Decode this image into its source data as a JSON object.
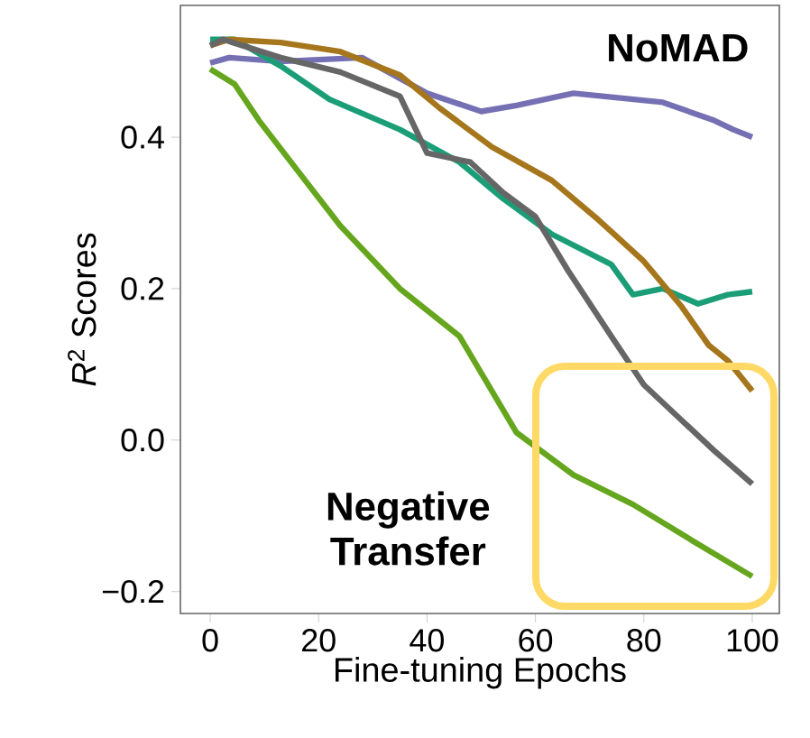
{
  "chart_data": {
    "type": "line",
    "xlabel": "Fine-tuning Epochs",
    "ylabel": "*R*$^{2}$ Scores",
    "xlim": [
      -5.5,
      105
    ],
    "ylim": [
      -0.229,
      0.574
    ],
    "xticks": [
      0,
      20,
      40,
      60,
      80,
      100
    ],
    "yticks": [
      {
        "value": -0.2,
        "label": "−0.2"
      },
      {
        "value": 0,
        "label": "0.0"
      },
      0.2,
      0.4
    ],
    "annotations": [
      "NoMAD",
      "Negative Transfer"
    ],
    "series": [
      {
        "color": "#7570b3",
        "x": [
          0,
          3.5,
          13,
          28,
          40,
          50,
          56.5,
          67,
          83.5,
          93,
          96.5,
          100
        ],
        "values": [
          0.498,
          0.505,
          0.5,
          0.505,
          0.458,
          0.434,
          0.442,
          0.458,
          0.446,
          0.422,
          0.41,
          0.4
        ]
      },
      {
        "color": "#1b9e77",
        "x": [
          0,
          4.5,
          13,
          22,
          35,
          46,
          54,
          63,
          74,
          78,
          83.5,
          90,
          95.5,
          100
        ],
        "values": [
          0.529,
          0.529,
          0.494,
          0.45,
          0.41,
          0.367,
          0.319,
          0.272,
          0.232,
          0.192,
          0.2,
          0.18,
          0.192,
          0.196
        ]
      },
      {
        "color": "#a6761d",
        "x": [
          0,
          3.5,
          13,
          24,
          35,
          42.4,
          52,
          63,
          71.6,
          80,
          87,
          92,
          95.5,
          100
        ],
        "values": [
          0.521,
          0.529,
          0.525,
          0.513,
          0.482,
          0.438,
          0.387,
          0.343,
          0.291,
          0.236,
          0.176,
          0.125,
          0.105,
          0.065
        ]
      },
      {
        "color": "#666666",
        "x": [
          0,
          2.4,
          13,
          24,
          35,
          40,
          48,
          54,
          60,
          66,
          74,
          80,
          87,
          93,
          100
        ],
        "values": [
          0.521,
          0.529,
          0.505,
          0.486,
          0.454,
          0.379,
          0.367,
          0.327,
          0.295,
          0.224,
          0.137,
          0.073,
          0.026,
          -0.014,
          -0.058
        ]
      },
      {
        "color": "#66a61e",
        "x": [
          0,
          4.5,
          9,
          17.5,
          24,
          35,
          46,
          56.5,
          67,
          78,
          89,
          100
        ],
        "values": [
          0.49,
          0.47,
          0.422,
          0.343,
          0.283,
          0.2,
          0.137,
          0.01,
          -0.046,
          -0.085,
          -0.133,
          -0.18
        ]
      }
    ]
  }
}
